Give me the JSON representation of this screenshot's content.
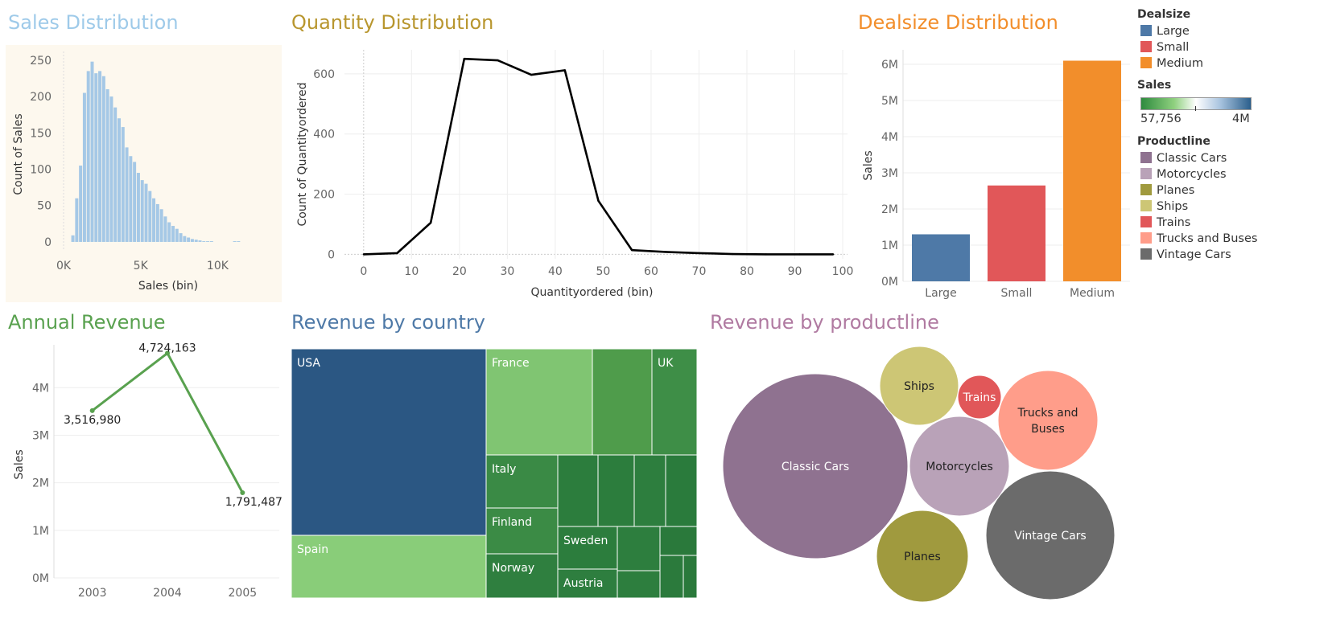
{
  "panels": {
    "sales_dist": {
      "title": "Sales Distribution",
      "color": "#9ecae9"
    },
    "qty_dist": {
      "title": "Quantity Distribution",
      "color": "#b8962e"
    },
    "dealsize_dist": {
      "title": "Dealsize Distribution",
      "color": "#f28e2b"
    },
    "annual_rev": {
      "title": "Annual Revenue",
      "color": "#59a14f"
    },
    "rev_country": {
      "title": "Revenue by country",
      "color": "#4e79a7"
    },
    "rev_productline": {
      "title": "Revenue by productline",
      "color": "#b07aa1"
    }
  },
  "legend": {
    "dealsize": {
      "title": "Dealsize",
      "items": [
        {
          "label": "Large",
          "color": "#4e79a7"
        },
        {
          "label": "Small",
          "color": "#e15759"
        },
        {
          "label": "Medium",
          "color": "#f28e2b"
        }
      ]
    },
    "sales": {
      "title": "Sales",
      "min_label": "57,756",
      "max_label": "4M",
      "gradient": [
        "#2e8b3e",
        "#ffffff",
        "#2b5f8c"
      ]
    },
    "productline": {
      "title": "Productline",
      "items": [
        {
          "label": "Classic Cars",
          "color": "#8f7290"
        },
        {
          "label": "Motorcycles",
          "color": "#b9a2b8"
        },
        {
          "label": "Planes",
          "color": "#a09a3e"
        },
        {
          "label": "Ships",
          "color": "#cdc675"
        },
        {
          "label": "Trains",
          "color": "#e15759"
        },
        {
          "label": "Trucks and Buses",
          "color": "#ff9d8a"
        },
        {
          "label": "Vintage Cars",
          "color": "#6b6b6b"
        }
      ]
    }
  },
  "chart_data": [
    {
      "id": "sales_hist",
      "type": "bar",
      "title": "Sales Distribution",
      "xlabel": "Sales (bin)",
      "ylabel": "Count of Sales",
      "bin_width": 250,
      "bin_start": 500,
      "values": [
        9,
        60,
        105,
        205,
        235,
        248,
        232,
        235,
        228,
        210,
        200,
        185,
        170,
        158,
        130,
        118,
        110,
        95,
        85,
        80,
        70,
        60,
        52,
        45,
        35,
        27,
        22,
        18,
        12,
        8,
        6,
        4,
        3,
        2,
        1,
        1,
        1,
        0,
        0,
        0,
        0,
        0,
        1,
        1
      ],
      "xticks": [
        {
          "v": 0,
          "l": "0K"
        },
        {
          "v": 5000,
          "l": "5K"
        },
        {
          "v": 10000,
          "l": "10K"
        }
      ],
      "yticks": [
        0,
        50,
        100,
        150,
        200,
        250
      ],
      "xlim": [
        0,
        14000
      ],
      "ylim": [
        -10,
        262
      ],
      "color": "#a5c8e6"
    },
    {
      "id": "qty_line",
      "type": "line",
      "title": "Quantity Distribution",
      "xlabel": "Quantityordered (bin)",
      "ylabel": "Count of Quantityordered",
      "x": [
        0,
        7,
        14,
        21,
        28,
        35,
        42,
        49,
        56,
        63,
        70,
        77,
        84,
        91,
        98
      ],
      "y": [
        0,
        4,
        105,
        650,
        645,
        597,
        612,
        178,
        14,
        8,
        4,
        1,
        0,
        0,
        0
      ],
      "xticks": [
        0,
        10,
        20,
        30,
        40,
        50,
        60,
        70,
        80,
        90,
        100
      ],
      "yticks": [
        0,
        200,
        400,
        600
      ],
      "xlim": [
        -4,
        101
      ],
      "ylim": [
        -15,
        680
      ],
      "color": "#000000"
    },
    {
      "id": "dealsize_bar",
      "type": "bar",
      "title": "Dealsize Distribution",
      "ylabel": "Sales",
      "categories": [
        "Large",
        "Small",
        "Medium"
      ],
      "values": [
        1300000,
        2650000,
        6100000
      ],
      "colors": [
        "#4e79a7",
        "#e15759",
        "#f28e2b"
      ],
      "yticks": [
        {
          "v": 0,
          "l": "0M"
        },
        {
          "v": 1000000,
          "l": "1M"
        },
        {
          "v": 2000000,
          "l": "2M"
        },
        {
          "v": 3000000,
          "l": "3M"
        },
        {
          "v": 4000000,
          "l": "4M"
        },
        {
          "v": 5000000,
          "l": "5M"
        },
        {
          "v": 6000000,
          "l": "6M"
        }
      ],
      "ylim": [
        0,
        6400000
      ]
    },
    {
      "id": "annual_line",
      "type": "line",
      "title": "Annual Revenue",
      "ylabel": "Sales",
      "categories": [
        "2003",
        "2004",
        "2005"
      ],
      "values": [
        3516980,
        4724163,
        1791487
      ],
      "labels": [
        "3,516,980",
        "4,724,163",
        "1,791,487"
      ],
      "yticks": [
        {
          "v": 0,
          "l": "0M"
        },
        {
          "v": 1000000,
          "l": "1M"
        },
        {
          "v": 2000000,
          "l": "2M"
        },
        {
          "v": 3000000,
          "l": "3M"
        },
        {
          "v": 4000000,
          "l": "4M"
        }
      ],
      "ylim": [
        0,
        4900000
      ],
      "color": "#59a14f"
    },
    {
      "id": "country_treemap",
      "type": "treemap",
      "title": "Revenue by country",
      "labeled": [
        {
          "label": "USA"
        },
        {
          "label": "Spain"
        },
        {
          "label": "France"
        },
        {
          "label": "UK"
        },
        {
          "label": "Italy"
        },
        {
          "label": "Finland"
        },
        {
          "label": "Norway"
        },
        {
          "label": "Sweden"
        },
        {
          "label": "Austria"
        }
      ]
    },
    {
      "id": "productline_bubbles",
      "type": "bubble",
      "title": "Revenue by productline",
      "items": [
        {
          "label": "Classic Cars",
          "color": "#8f7290"
        },
        {
          "label": "Ships",
          "color": "#cdc675"
        },
        {
          "label": "Trains",
          "color": "#e15759"
        },
        {
          "label": "Trucks and Buses",
          "color": "#ff9d8a"
        },
        {
          "label": "Motorcycles",
          "color": "#b9a2b8"
        },
        {
          "label": "Vintage Cars",
          "color": "#6b6b6b"
        },
        {
          "label": "Planes",
          "color": "#a09a3e"
        }
      ]
    }
  ]
}
